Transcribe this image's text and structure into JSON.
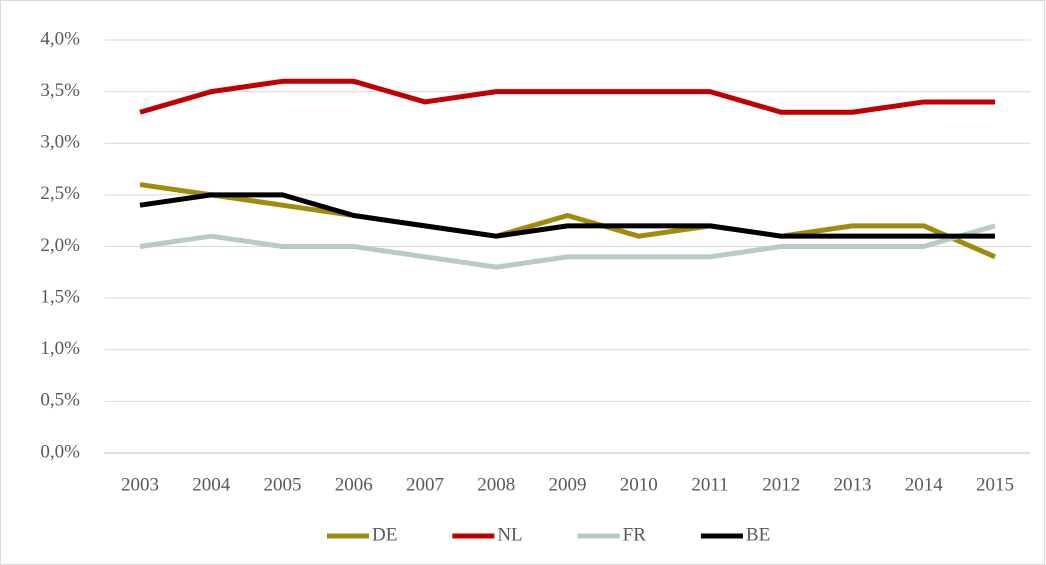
{
  "chart_data": {
    "type": "line",
    "categories": [
      "2003",
      "2004",
      "2005",
      "2006",
      "2007",
      "2008",
      "2009",
      "2010",
      "2011",
      "2012",
      "2013",
      "2014",
      "2015"
    ],
    "series": [
      {
        "name": "DE",
        "color": "#a08c0c",
        "values": [
          2.6,
          2.5,
          2.4,
          2.3,
          2.2,
          2.1,
          2.3,
          2.1,
          2.2,
          2.1,
          2.2,
          2.2,
          1.9
        ]
      },
      {
        "name": "NL",
        "color": "#c00000",
        "values": [
          3.3,
          3.5,
          3.6,
          3.6,
          3.4,
          3.5,
          3.5,
          3.5,
          3.5,
          3.3,
          3.3,
          3.4,
          3.4
        ]
      },
      {
        "name": "FR",
        "color": "#b9caca",
        "values": [
          2.0,
          2.1,
          2.0,
          2.0,
          1.9,
          1.8,
          1.9,
          1.9,
          1.9,
          2.0,
          2.0,
          2.0,
          2.2
        ]
      },
      {
        "name": "BE",
        "color": "#000000",
        "values": [
          2.4,
          2.5,
          2.5,
          2.3,
          2.2,
          2.1,
          2.2,
          2.2,
          2.2,
          2.1,
          2.1,
          2.1,
          2.1
        ]
      }
    ],
    "ylim": [
      0,
      4
    ],
    "yticks": [
      {
        "value": 0,
        "label": "0,0%"
      },
      {
        "value": 0.5,
        "label": "0,5%"
      },
      {
        "value": 1,
        "label": "1,0%"
      },
      {
        "value": 1.5,
        "label": "1,5%"
      },
      {
        "value": 2,
        "label": "2,0%"
      },
      {
        "value": 2.5,
        "label": "2,5%"
      },
      {
        "value": 3,
        "label": "3,0%"
      },
      {
        "value": 3.5,
        "label": "3,5%"
      },
      {
        "value": 4,
        "label": "4,0%"
      }
    ],
    "grid": true,
    "legend": "bottom"
  }
}
